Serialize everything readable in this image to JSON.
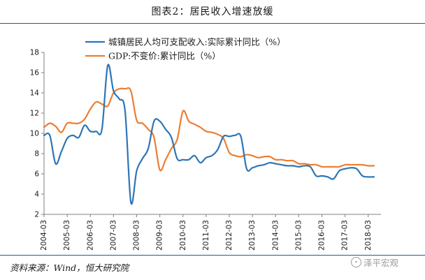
{
  "header": {
    "title": "图表2：居民收入增速放缓"
  },
  "footer": {
    "source": "资料来源：Wind，恒大研究院",
    "watermark": "泽平宏观"
  },
  "chart_data": {
    "type": "line",
    "title": "图表2：居民收入增速放缓",
    "xlabel": "",
    "ylabel": "",
    "ylim": [
      2,
      18
    ],
    "yticks": [
      2,
      4,
      6,
      8,
      10,
      12,
      14,
      16,
      18
    ],
    "xticks": [
      "2004-03",
      "2005-03",
      "2006-03",
      "2007-03",
      "2008-03",
      "2009-03",
      "2010-03",
      "2011-03",
      "2012-03",
      "2013-03",
      "2014-03",
      "2015-03",
      "2016-03",
      "2017-03",
      "2018-03"
    ],
    "grid": false,
    "legend_position": "top-center",
    "x": [
      "2004-03",
      "2004-06",
      "2004-09",
      "2004-12",
      "2005-03",
      "2005-06",
      "2005-09",
      "2005-12",
      "2006-03",
      "2006-06",
      "2006-09",
      "2006-12",
      "2007-03",
      "2007-06",
      "2007-09",
      "2007-12",
      "2008-03",
      "2008-06",
      "2008-09",
      "2008-12",
      "2009-03",
      "2009-06",
      "2009-09",
      "2009-12",
      "2010-03",
      "2010-06",
      "2010-09",
      "2010-12",
      "2011-03",
      "2011-06",
      "2011-09",
      "2011-12",
      "2012-03",
      "2012-06",
      "2012-09",
      "2012-12",
      "2013-03",
      "2013-06",
      "2013-09",
      "2013-12",
      "2014-03",
      "2014-06",
      "2014-09",
      "2014-12",
      "2015-03",
      "2015-06",
      "2015-09",
      "2015-12",
      "2016-03",
      "2016-06",
      "2016-09",
      "2016-12",
      "2017-03",
      "2017-06",
      "2017-09",
      "2017-12",
      "2018-03",
      "2018-06"
    ],
    "series": [
      {
        "name": "城镇居民人均可支配收入:实际累计同比（%）",
        "color": "#2e75b6",
        "values": [
          9.8,
          9.8,
          7.0,
          8.2,
          9.5,
          9.8,
          9.6,
          10.8,
          10.2,
          10.2,
          10.4,
          16.7,
          14.2,
          13.4,
          12.2,
          3.2,
          6.3,
          7.5,
          8.5,
          11.2,
          11.2,
          10.4,
          9.6,
          7.5,
          7.4,
          7.4,
          7.8,
          7.1,
          7.6,
          7.8,
          8.4,
          9.7,
          9.7,
          9.8,
          9.7,
          6.5,
          6.6,
          6.8,
          6.9,
          7.1,
          7.0,
          6.9,
          6.8,
          6.8,
          6.7,
          6.8,
          6.7,
          5.8,
          5.8,
          5.7,
          5.5,
          6.3,
          6.5,
          6.6,
          6.5,
          5.8,
          5.7,
          5.7
        ]
      },
      {
        "name": "GDP:不变价:累计同比（%）",
        "color": "#ed7d31",
        "values": [
          10.6,
          11.0,
          10.7,
          10.1,
          11.0,
          11.0,
          11.0,
          11.4,
          12.4,
          13.1,
          12.9,
          12.7,
          14.0,
          14.4,
          14.4,
          14.2,
          11.3,
          11.0,
          10.4,
          9.6,
          6.4,
          7.4,
          8.5,
          9.4,
          12.2,
          11.2,
          10.9,
          10.6,
          10.2,
          10.1,
          9.9,
          9.5,
          8.1,
          7.8,
          7.7,
          7.9,
          7.8,
          7.6,
          7.7,
          7.7,
          7.4,
          7.4,
          7.3,
          7.3,
          7.0,
          7.0,
          6.9,
          6.9,
          6.7,
          6.7,
          6.7,
          6.7,
          6.9,
          6.9,
          6.9,
          6.9,
          6.8,
          6.8
        ]
      }
    ]
  }
}
